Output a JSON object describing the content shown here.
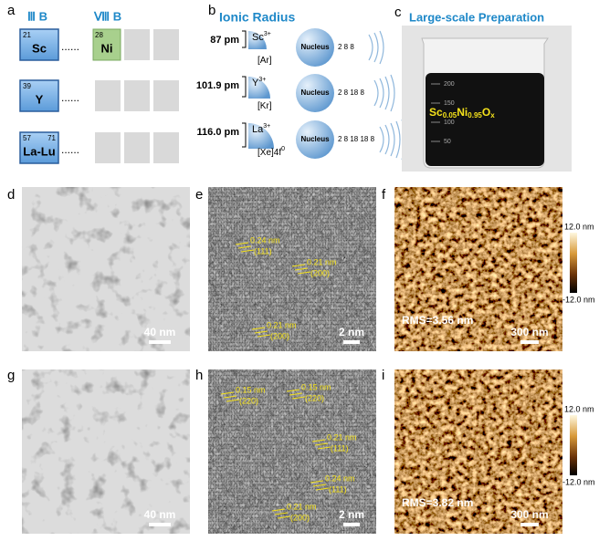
{
  "panels": {
    "a": {
      "label": "a",
      "groups": [
        "Ⅲ B",
        "Ⅷ B"
      ],
      "dots": "......",
      "elements": [
        {
          "number": "21",
          "symbol": "Sc"
        },
        {
          "number": "28",
          "symbol": "Ni"
        },
        {
          "number": "39",
          "symbol": "Y"
        },
        {
          "number": "57",
          "number2": "71",
          "symbol": "La-Lu"
        }
      ]
    },
    "b": {
      "label": "b",
      "title": "Ionic Radius",
      "nucleus": "Nucleus",
      "rows": [
        {
          "radius": "87 pm",
          "ion": "Sc",
          "charge": "3+",
          "config": "[Ar]",
          "shells": "2 8 8"
        },
        {
          "radius": "101.9 pm",
          "ion": "Y",
          "charge": "3+",
          "config": "[Kr]",
          "shells": "2 8 18 8"
        },
        {
          "radius": "116.0 pm",
          "ion": "La",
          "charge": "3+",
          "config": "[Xe]4f",
          "config_sup": "0",
          "shells": "2 8 18 18 8"
        }
      ]
    },
    "c": {
      "label": "c",
      "title": "Large-scale Preparation",
      "scale": [
        "200",
        "150",
        "100",
        "50"
      ],
      "formula": [
        "Sc",
        "0.05",
        "Ni",
        "0.95",
        "O",
        "x"
      ]
    },
    "d": {
      "label": "d",
      "scale_bar": "40 nm"
    },
    "e": {
      "label": "e",
      "scale_bar": "2 nm",
      "fringes": [
        {
          "spacing": "0.24 nm",
          "plane": "(111)"
        },
        {
          "spacing": "0.21 nm",
          "plane": "(200)"
        },
        {
          "spacing": "0.21 nm",
          "plane": "(200)"
        }
      ]
    },
    "f": {
      "label": "f",
      "colorbar_max": "12.0 nm",
      "colorbar_min": "-12.0 nm",
      "rms": "RMS=3.56 nm",
      "scale_bar": "300 nm"
    },
    "g": {
      "label": "g",
      "scale_bar": "40 nm"
    },
    "h": {
      "label": "h",
      "scale_bar": "2 nm",
      "fringes": [
        {
          "spacing": "0.15 nm",
          "plane": "(220)"
        },
        {
          "spacing": "0.15 nm",
          "plane": "(220)"
        },
        {
          "spacing": "0.21 nm",
          "plane": "(111)"
        },
        {
          "spacing": "0.24 nm",
          "plane": "(111)"
        },
        {
          "spacing": "0.21 nm",
          "plane": "(200)"
        }
      ]
    },
    "i": {
      "label": "i",
      "colorbar_max": "12.0 nm",
      "colorbar_min": "-12.0 nm",
      "rms": "RMS=3.82 nm",
      "scale_bar": "300 nm"
    }
  }
}
